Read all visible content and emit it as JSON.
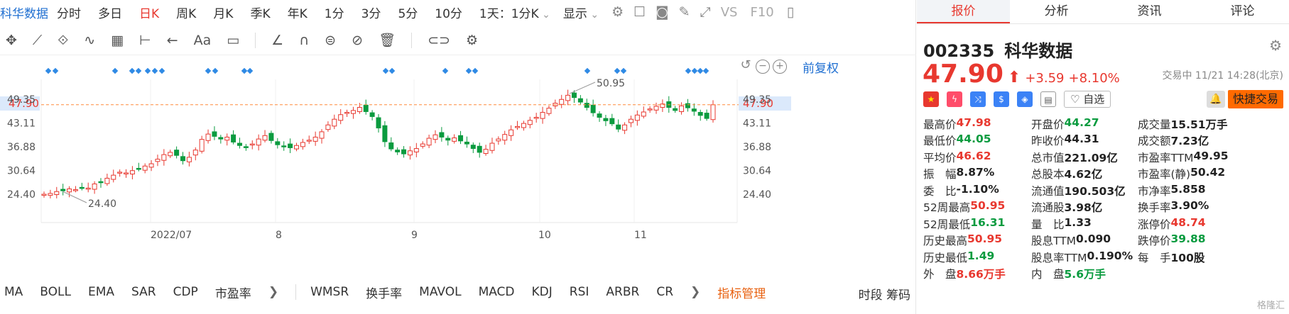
{
  "period_bar": {
    "stock_name": "科华数据",
    "items": [
      "分时",
      "多日",
      "日K",
      "周K",
      "月K",
      "季K",
      "年K",
      "1分",
      "3分",
      "5分",
      "10分"
    ],
    "active": "日K",
    "interval_select": "1天：1分K",
    "display_select": "显示",
    "vs_label": "VS",
    "f10_label": "F10"
  },
  "chart": {
    "fuquan_label": "前复权",
    "y_ticks": [
      "49.35",
      "43.11",
      "36.88",
      "30.64",
      "24.40"
    ],
    "current_price_tag": "47.90",
    "high_annotation": "50.95",
    "low_annotation": "24.40",
    "x_labels": [
      "2022/07",
      "8",
      "9",
      "10",
      "11"
    ]
  },
  "indicators": {
    "items": [
      "MA",
      "BOLL",
      "EMA",
      "SAR",
      "CDP",
      "市盈率"
    ],
    "items2": [
      "WMSR",
      "换手率",
      "MAVOL",
      "MACD",
      "KDJ",
      "RSI",
      "ARBR",
      "CR"
    ],
    "manage_label": "指标管理",
    "tail_items": [
      "时段",
      "筹码"
    ]
  },
  "quote": {
    "tabs": [
      "报价",
      "分析",
      "资讯",
      "评论"
    ],
    "active_tab": "报价",
    "code": "002335",
    "name": "科华数据",
    "price": "47.90",
    "change": "+3.59",
    "change_pct": "+8.10%",
    "status": "交易中 11/21 14:28(北京)",
    "watch_label": "自选",
    "quick_trade_label": "快捷交易",
    "stats": [
      [
        {
          "label": "最高价",
          "value": "47.98",
          "color": "red"
        },
        {
          "label": "开盘价",
          "value": "44.27",
          "color": "green"
        },
        {
          "label": "成交量",
          "value": "15.51万手",
          "color": "dark"
        }
      ],
      [
        {
          "label": "最低价",
          "value": "44.05",
          "color": "green"
        },
        {
          "label": "昨收价",
          "value": "44.31",
          "color": "dark"
        },
        {
          "label": "成交额",
          "value": "7.23亿",
          "color": "dark"
        }
      ],
      [
        {
          "label": "平均价",
          "value": "46.62",
          "color": "red"
        },
        {
          "label": "总市值",
          "value": "221.09亿",
          "color": "dark"
        },
        {
          "label": "市盈率TTM",
          "value": "49.95",
          "color": "dark"
        }
      ],
      [
        {
          "label": "振　幅",
          "value": "8.87%",
          "color": "dark"
        },
        {
          "label": "总股本",
          "value": "4.62亿",
          "color": "dark"
        },
        {
          "label": "市盈率(静)",
          "value": "50.42",
          "color": "dark"
        }
      ],
      [
        {
          "label": "委　比",
          "value": "-1.10%",
          "color": "dark"
        },
        {
          "label": "流通值",
          "value": "190.503亿",
          "color": "dark"
        },
        {
          "label": "市净率",
          "value": "5.858",
          "color": "dark"
        }
      ],
      [
        {
          "label": "52周最高",
          "value": "50.95",
          "color": "red"
        },
        {
          "label": "流通股",
          "value": "3.98亿",
          "color": "dark"
        },
        {
          "label": "换手率",
          "value": "3.90%",
          "color": "dark"
        }
      ],
      [
        {
          "label": "52周最低",
          "value": "16.31",
          "color": "green"
        },
        {
          "label": "量　比",
          "value": "1.33",
          "color": "dark"
        },
        {
          "label": "涨停价",
          "value": "48.74",
          "color": "red"
        }
      ],
      [
        {
          "label": "历史最高",
          "value": "50.95",
          "color": "red"
        },
        {
          "label": "股息TTM",
          "value": "0.090",
          "color": "dark"
        },
        {
          "label": "跌停价",
          "value": "39.88",
          "color": "green"
        }
      ],
      [
        {
          "label": "历史最低",
          "value": "1.49",
          "color": "green"
        },
        {
          "label": "股息率TTM",
          "value": "0.190%",
          "color": "dark"
        },
        {
          "label": "每　手",
          "value": "100股",
          "color": "dark"
        }
      ],
      [
        {
          "label": "外　盘",
          "value": "8.66万手",
          "color": "red"
        },
        {
          "label": "内　盘",
          "value": "5.6万手",
          "color": "green"
        },
        {
          "label": "",
          "value": "",
          "color": "dark"
        }
      ]
    ],
    "watermark": "格隆汇"
  },
  "colors": {
    "up": "#e8382f",
    "down": "#0a9b3f",
    "accent": "#1f6fd1",
    "quick": "#ff6a00"
  }
}
